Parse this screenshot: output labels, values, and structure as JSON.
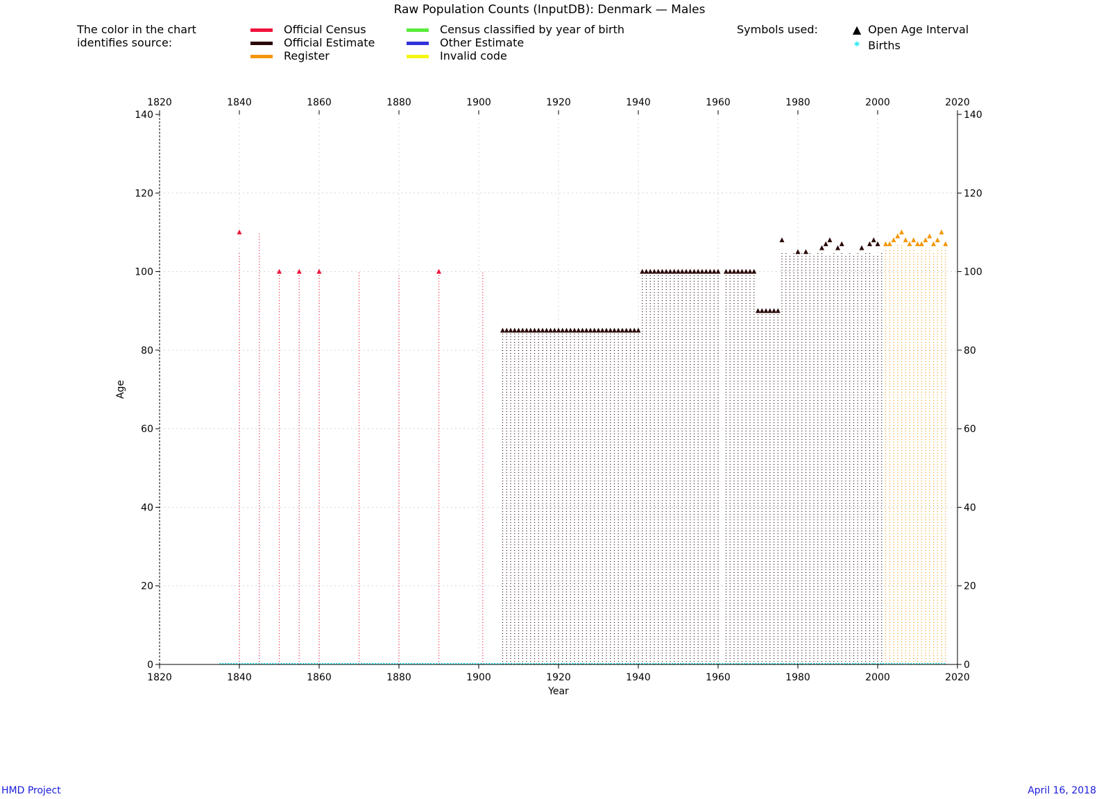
{
  "header": {
    "title": "Raw Population Counts (InputDB): Denmark — Males",
    "legend_intro_line1": "The color in the chart",
    "legend_intro_line2": "identifies source:",
    "symbols_heading": "Symbols used:"
  },
  "legend": [
    {
      "label": "Official Census",
      "color": "#f0143c"
    },
    {
      "label": "Official Estimate",
      "color": "#2a0808"
    },
    {
      "label": "Register",
      "color": "#f5960a"
    },
    {
      "label": "Census classified by year of birth",
      "color": "#5aeb3c"
    },
    {
      "label": "Other Estimate",
      "color": "#3232dc"
    },
    {
      "label": "Invalid code",
      "color": "#f5f514"
    }
  ],
  "symbols": [
    {
      "glyph": "▲",
      "label": "Open Age Interval",
      "color": "#000000"
    },
    {
      "glyph": "*",
      "label": "Births",
      "color": "#14e6f0"
    }
  ],
  "footer": {
    "left": "HMD Project",
    "right": "April 16, 2018"
  },
  "chart_data": {
    "type": "scatter",
    "title": "Raw Population Counts (InputDB): Denmark — Males",
    "xlabel": "Year",
    "ylabel": "Age",
    "xlim": [
      1820,
      2020
    ],
    "ylim": [
      0,
      140
    ],
    "x_ticks": [
      1820,
      1840,
      1860,
      1880,
      1900,
      1920,
      1940,
      1960,
      1980,
      2000,
      2020
    ],
    "y_ticks": [
      0,
      20,
      40,
      60,
      80,
      100,
      120,
      140
    ],
    "grid": true,
    "births_years": [
      1835,
      2017
    ],
    "series": [
      {
        "name": "Official Census",
        "color": "#f0143c",
        "points": [
          {
            "year": 1840,
            "max_age": 105,
            "open_age": 110
          },
          {
            "year": 1845,
            "max_age": 110,
            "open_age": null
          },
          {
            "year": 1850,
            "max_age": 100,
            "open_age": 100
          },
          {
            "year": 1855,
            "max_age": 100,
            "open_age": 100
          },
          {
            "year": 1860,
            "max_age": 100,
            "open_age": 100
          },
          {
            "year": 1870,
            "max_age": 100,
            "open_age": null
          },
          {
            "year": 1880,
            "max_age": 99,
            "open_age": null
          },
          {
            "year": 1890,
            "max_age": 100,
            "open_age": 100
          },
          {
            "year": 1901,
            "max_age": 100,
            "open_age": null
          }
        ]
      },
      {
        "name": "Official Estimate",
        "color": "#2a0808",
        "ranges": [
          {
            "from": 1906,
            "to": 1940,
            "max_age": 85,
            "open_age": 85
          },
          {
            "from": 1941,
            "to": 1960,
            "max_age": 100,
            "open_age": 100
          },
          {
            "from": 1962,
            "to": 1969,
            "max_age": 100,
            "open_age": 100
          },
          {
            "from": 1970,
            "to": 1975,
            "max_age": 90,
            "open_age": 90
          }
        ],
        "points": [
          {
            "year": 1976,
            "max_age": 105,
            "open_age": 108
          },
          {
            "year": 1977,
            "max_age": 105,
            "open_age": null
          },
          {
            "year": 1978,
            "max_age": 104,
            "open_age": null
          },
          {
            "year": 1979,
            "max_age": 105,
            "open_age": null
          },
          {
            "year": 1980,
            "max_age": 104,
            "open_age": 105
          },
          {
            "year": 1981,
            "max_age": 105,
            "open_age": null
          },
          {
            "year": 1982,
            "max_age": 104,
            "open_age": 105
          },
          {
            "year": 1983,
            "max_age": 105,
            "open_age": null
          },
          {
            "year": 1984,
            "max_age": 104,
            "open_age": null
          },
          {
            "year": 1985,
            "max_age": 105,
            "open_age": null
          },
          {
            "year": 1986,
            "max_age": 105,
            "open_age": 106
          },
          {
            "year": 1987,
            "max_age": 104,
            "open_age": 107
          },
          {
            "year": 1988,
            "max_age": 104,
            "open_age": 108
          },
          {
            "year": 1989,
            "max_age": 105,
            "open_age": null
          },
          {
            "year": 1990,
            "max_age": 104,
            "open_age": 106
          },
          {
            "year": 1991,
            "max_age": 105,
            "open_age": 107
          },
          {
            "year": 1992,
            "max_age": 104,
            "open_age": null
          },
          {
            "year": 1993,
            "max_age": 105,
            "open_age": null
          },
          {
            "year": 1994,
            "max_age": 104,
            "open_age": null
          },
          {
            "year": 1995,
            "max_age": 105,
            "open_age": null
          },
          {
            "year": 1996,
            "max_age": 104,
            "open_age": 106
          },
          {
            "year": 1997,
            "max_age": 105,
            "open_age": null
          },
          {
            "year": 1998,
            "max_age": 105,
            "open_age": 107
          },
          {
            "year": 1999,
            "max_age": 104,
            "open_age": 108
          },
          {
            "year": 2000,
            "max_age": 104,
            "open_age": 107
          },
          {
            "year": 2001,
            "max_age": 105,
            "open_age": null
          }
        ]
      },
      {
        "name": "Register",
        "color": "#f5960a",
        "points": [
          {
            "year": 2002,
            "max_age": 106,
            "open_age": 107
          },
          {
            "year": 2003,
            "max_age": 106,
            "open_age": 107
          },
          {
            "year": 2004,
            "max_age": 106,
            "open_age": 108
          },
          {
            "year": 2005,
            "max_age": 107,
            "open_age": 109
          },
          {
            "year": 2006,
            "max_age": 107,
            "open_age": 110
          },
          {
            "year": 2007,
            "max_age": 106,
            "open_age": 108
          },
          {
            "year": 2008,
            "max_age": 106,
            "open_age": 107
          },
          {
            "year": 2009,
            "max_age": 106,
            "open_age": 108
          },
          {
            "year": 2010,
            "max_age": 105,
            "open_age": 107
          },
          {
            "year": 2011,
            "max_age": 106,
            "open_age": 107
          },
          {
            "year": 2012,
            "max_age": 106,
            "open_age": 108
          },
          {
            "year": 2013,
            "max_age": 106,
            "open_age": 109
          },
          {
            "year": 2014,
            "max_age": 105,
            "open_age": 107
          },
          {
            "year": 2015,
            "max_age": 106,
            "open_age": 108
          },
          {
            "year": 2016,
            "max_age": 106,
            "open_age": 110
          },
          {
            "year": 2017,
            "max_age": 106,
            "open_age": 107
          }
        ]
      }
    ]
  }
}
